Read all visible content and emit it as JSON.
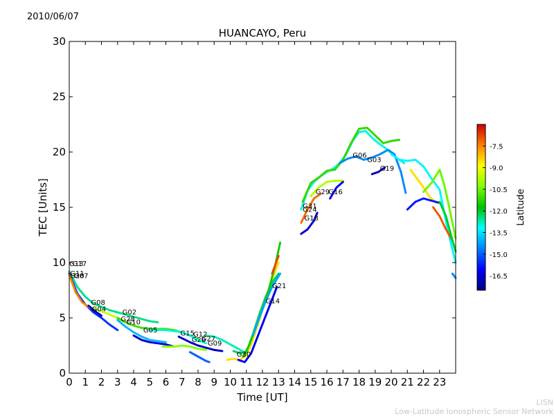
{
  "date": "2010/06/07",
  "credit": {
    "short": "LISN",
    "long": "Low-Latitude Ionospheric Sensor Network"
  },
  "chart_data": {
    "type": "scatter",
    "title": "HUANCAYO, Peru",
    "xlabel": "Time [UT]",
    "ylabel": "TEC [Units]",
    "xlim": [
      0,
      24
    ],
    "ylim": [
      0,
      30
    ],
    "xticks": [
      0,
      1,
      2,
      3,
      4,
      5,
      6,
      7,
      8,
      9,
      10,
      11,
      12,
      13,
      14,
      15,
      16,
      17,
      18,
      19,
      20,
      21,
      22,
      23
    ],
    "yticks": [
      0,
      5,
      10,
      15,
      20,
      25,
      30
    ],
    "colorbar": {
      "label": "Latitude",
      "range": [
        -17.5,
        -6.0
      ],
      "ticks": [
        -7.5,
        -9.0,
        -10.5,
        -12.0,
        -13.5,
        -15.0,
        -16.5
      ]
    },
    "satellite_labels": [
      {
        "name": "G13",
        "x": 0.0,
        "y": 9.7
      },
      {
        "name": "G17",
        "x": 0.2,
        "y": 9.7
      },
      {
        "name": "G11",
        "x": 0.05,
        "y": 8.8
      },
      {
        "name": "G20",
        "x": 0.05,
        "y": 8.6
      },
      {
        "name": "G07",
        "x": 0.3,
        "y": 8.6
      },
      {
        "name": "G08",
        "x": 1.35,
        "y": 6.2
      },
      {
        "name": "G04",
        "x": 1.4,
        "y": 5.6
      },
      {
        "name": "G02",
        "x": 3.3,
        "y": 5.3
      },
      {
        "name": "G28",
        "x": 3.2,
        "y": 4.7
      },
      {
        "name": "G10",
        "x": 3.55,
        "y": 4.4
      },
      {
        "name": "G05",
        "x": 4.6,
        "y": 3.7
      },
      {
        "name": "G15",
        "x": 6.9,
        "y": 3.4
      },
      {
        "name": "G12",
        "x": 7.7,
        "y": 3.3
      },
      {
        "name": "G26",
        "x": 7.6,
        "y": 2.8
      },
      {
        "name": "G27",
        "x": 8.2,
        "y": 2.9
      },
      {
        "name": "G09",
        "x": 8.6,
        "y": 2.5
      },
      {
        "name": "G30",
        "x": 10.4,
        "y": 1.5
      },
      {
        "name": "G21",
        "x": 12.6,
        "y": 7.7
      },
      {
        "name": "G14",
        "x": 12.2,
        "y": 6.3
      },
      {
        "name": "G31",
        "x": 14.5,
        "y": 14.9
      },
      {
        "name": "G24",
        "x": 14.5,
        "y": 14.6
      },
      {
        "name": "G18",
        "x": 14.6,
        "y": 13.8
      },
      {
        "name": "G29",
        "x": 15.3,
        "y": 16.2
      },
      {
        "name": "G16",
        "x": 16.1,
        "y": 16.2
      },
      {
        "name": "G06",
        "x": 17.6,
        "y": 19.5
      },
      {
        "name": "G03",
        "x": 18.5,
        "y": 19.1
      },
      {
        "name": "G19",
        "x": 19.3,
        "y": 18.3
      }
    ],
    "series": [
      {
        "name": "trace-a",
        "lat": -12.5,
        "x": [
          0,
          0.5,
          1,
          1.5,
          2,
          2.5,
          3,
          3.5,
          4,
          4.5,
          5,
          5.5
        ],
        "y": [
          9.2,
          7.8,
          6.9,
          6.3,
          6.0,
          5.7,
          5.5,
          5.3,
          5.1,
          4.9,
          4.7,
          4.6
        ]
      },
      {
        "name": "trace-b",
        "lat": -15.5,
        "x": [
          0,
          0.5,
          1,
          1.5,
          2,
          2.5,
          3
        ],
        "y": [
          9.0,
          7.2,
          6.2,
          5.5,
          5.0,
          4.4,
          3.9
        ]
      },
      {
        "name": "trace-c",
        "lat": -7.5,
        "x": [
          0,
          0.4,
          0.8,
          1.2,
          1.6
        ],
        "y": [
          8.9,
          7.3,
          6.4,
          6.0,
          5.7
        ]
      },
      {
        "name": "trace-d",
        "lat": -9.5,
        "x": [
          1.5,
          2,
          2.5,
          3,
          3.5,
          4
        ],
        "y": [
          5.9,
          5.6,
          5.3,
          5.0,
          4.6,
          4.3
        ]
      },
      {
        "name": "trace-e",
        "lat": -16.8,
        "x": [
          1.2,
          1.6,
          2
        ],
        "y": [
          6.1,
          5.6,
          5.2
        ]
      },
      {
        "name": "trace-f",
        "lat": -14.0,
        "x": [
          3,
          3.5,
          4,
          4.5,
          5,
          5.5,
          6
        ],
        "y": [
          4.8,
          4.2,
          3.7,
          3.3,
          3.0,
          2.9,
          2.8
        ]
      },
      {
        "name": "trace-g",
        "lat": -11.0,
        "x": [
          3,
          3.5,
          4,
          4.5,
          5,
          5.5,
          6,
          6.5,
          7,
          7.5,
          8
        ],
        "y": [
          5.0,
          4.6,
          4.3,
          4.1,
          4.0,
          4.0,
          4.0,
          3.9,
          3.7,
          3.4,
          3.1
        ]
      },
      {
        "name": "trace-h",
        "lat": -16.5,
        "x": [
          4,
          4.5,
          5,
          5.5,
          6,
          6.5
        ],
        "y": [
          3.4,
          3.0,
          2.8,
          2.7,
          2.6,
          2.4
        ]
      },
      {
        "name": "trace-i",
        "lat": -10.2,
        "x": [
          5.8,
          6.5,
          7,
          7.5,
          8,
          8.5
        ],
        "y": [
          2.4,
          2.4,
          2.5,
          2.4,
          2.2,
          2.1
        ]
      },
      {
        "name": "trace-j",
        "lat": -13.0,
        "x": [
          5,
          5.5,
          6,
          6.5,
          7,
          7.5,
          8,
          8.5
        ],
        "y": [
          3.9,
          3.9,
          3.9,
          3.8,
          3.7,
          3.4,
          3.0,
          2.7
        ]
      },
      {
        "name": "trace-k",
        "lat": -15.0,
        "x": [
          7.5,
          8,
          8.5,
          8.7
        ],
        "y": [
          1.9,
          1.5,
          1.1,
          1.0
        ]
      },
      {
        "name": "trace-l",
        "lat": -16.7,
        "x": [
          6.8,
          7.5,
          8,
          8.5,
          9,
          9.5
        ],
        "y": [
          3.3,
          2.8,
          2.5,
          2.3,
          2.1,
          2.0
        ]
      },
      {
        "name": "trace-m",
        "lat": -12.8,
        "x": [
          8.5,
          9,
          9.5,
          10,
          10.5,
          11
        ],
        "y": [
          3.4,
          3.3,
          3.0,
          2.6,
          2.2,
          1.8
        ]
      },
      {
        "name": "trace-n",
        "lat": -8.5,
        "x": [
          9.8,
          10.2,
          10.6,
          11,
          11.4,
          11.8,
          12.2,
          12.6,
          13
        ],
        "y": [
          1.2,
          1.3,
          1.2,
          1.6,
          3.0,
          4.8,
          6.8,
          8.5,
          10.0
        ]
      },
      {
        "name": "trace-o",
        "lat": -12.2,
        "x": [
          10.2,
          10.6,
          11,
          11.4,
          11.8,
          12.2,
          12.6,
          13
        ],
        "y": [
          2.0,
          1.8,
          1.9,
          3.5,
          5.3,
          6.9,
          8.2,
          9.0
        ]
      },
      {
        "name": "trace-p",
        "lat": -16.3,
        "x": [
          10.5,
          10.9,
          11.3,
          11.7,
          12.1,
          12.5,
          12.9
        ],
        "y": [
          1.2,
          1.0,
          1.8,
          3.3,
          4.8,
          6.3,
          7.8
        ]
      },
      {
        "name": "trace-q",
        "lat": -11.5,
        "x": [
          10.8,
          11.2,
          11.6,
          12,
          12.4,
          12.8,
          13.1
        ],
        "y": [
          1.5,
          2.6,
          4.2,
          5.8,
          7.6,
          9.8,
          11.8
        ]
      },
      {
        "name": "trace-r",
        "lat": -6.8,
        "x": [
          12.6,
          12.8,
          13
        ],
        "y": [
          9.0,
          9.8,
          10.6
        ]
      },
      {
        "name": "trace-s",
        "lat": -14.2,
        "x": [
          11.4,
          11.8,
          12.2,
          12.6,
          13.1
        ],
        "y": [
          3.4,
          5.0,
          6.5,
          7.8,
          9.0
        ]
      },
      {
        "name": "trace-t",
        "lat": -13.0,
        "x": [
          14.4,
          14.8,
          15.2,
          15.6,
          16,
          16.4,
          16.8,
          17.2,
          17.6,
          18,
          18.4,
          18.8,
          19.2,
          19.6,
          20,
          20.4,
          20.8
        ],
        "y": [
          14.8,
          16.5,
          17.3,
          17.8,
          18.2,
          18.5,
          19.0,
          19.8,
          21.0,
          21.8,
          21.9,
          21.3,
          20.8,
          20.4,
          19.9,
          19.4,
          19.0
        ]
      },
      {
        "name": "trace-u",
        "lat": -11.2,
        "x": [
          14.5,
          15,
          15.5,
          16,
          16.5,
          17,
          17.5,
          18,
          18.5,
          19,
          19.5,
          20,
          20.5
        ],
        "y": [
          15.5,
          17.2,
          17.7,
          18.3,
          18.4,
          19.3,
          20.8,
          22.1,
          22.2,
          21.5,
          20.8,
          21.0,
          21.1
        ]
      },
      {
        "name": "trace-v",
        "lat": -16.5,
        "x": [
          14.4,
          14.8,
          15.2,
          15.4
        ],
        "y": [
          12.6,
          13.0,
          13.8,
          14.5
        ]
      },
      {
        "name": "trace-w",
        "lat": -7.2,
        "x": [
          14.4,
          14.8,
          15.2,
          15.6
        ],
        "y": [
          13.6,
          14.8,
          15.8,
          16.2
        ]
      },
      {
        "name": "trace-x",
        "lat": -9.8,
        "x": [
          15,
          15.5,
          16,
          16.5,
          17
        ],
        "y": [
          16.0,
          16.8,
          17.3,
          17.4,
          17.4
        ]
      },
      {
        "name": "trace-y",
        "lat": -16.2,
        "x": [
          16.2,
          16.6,
          17
        ],
        "y": [
          15.8,
          16.8,
          17.3
        ]
      },
      {
        "name": "trace-z",
        "lat": -14.5,
        "x": [
          16.8,
          17.3,
          17.8,
          18.3,
          18.8,
          19.3,
          19.8,
          20.2,
          20.6,
          20.9
        ],
        "y": [
          19.0,
          19.4,
          19.6,
          19.3,
          19.5,
          19.8,
          20.2,
          19.8,
          18.2,
          16.3
        ]
      },
      {
        "name": "trace-aa",
        "lat": -16.8,
        "x": [
          18.8,
          19.2,
          19.6
        ],
        "y": [
          18.0,
          18.2,
          18.6
        ]
      },
      {
        "name": "trace-ab",
        "lat": -13.3,
        "x": [
          20,
          20.5,
          21,
          21.5,
          22,
          22.5,
          23,
          23.5,
          24
        ],
        "y": [
          19.8,
          19.3,
          19.2,
          19.3,
          18.7,
          17.6,
          16.6,
          13.0,
          10.0
        ]
      },
      {
        "name": "trace-ac",
        "lat": -8.5,
        "x": [
          21.2,
          21.6,
          22,
          22.4,
          22.8
        ],
        "y": [
          18.4,
          17.6,
          16.8,
          15.9,
          15.4
        ]
      },
      {
        "name": "trace-ad",
        "lat": -10.5,
        "x": [
          22,
          22.5,
          23,
          23.3,
          23.6,
          24
        ],
        "y": [
          16.4,
          17.2,
          18.4,
          17.0,
          15.0,
          12.2
        ]
      },
      {
        "name": "trace-ae",
        "lat": -15.8,
        "x": [
          21,
          21.5,
          22,
          22.5,
          23
        ],
        "y": [
          14.8,
          15.5,
          15.8,
          15.6,
          15.4
        ]
      },
      {
        "name": "trace-af",
        "lat": -7.0,
        "x": [
          22.6,
          23,
          23.4,
          23.8
        ],
        "y": [
          15.0,
          14.2,
          13.0,
          12.0
        ]
      },
      {
        "name": "trace-ag",
        "lat": -12.0,
        "x": [
          23,
          23.4,
          23.8,
          24
        ],
        "y": [
          15.5,
          14.2,
          12.0,
          11.0
        ]
      },
      {
        "name": "trace-ah",
        "lat": -14.5,
        "x": [
          23.8,
          24
        ],
        "y": [
          9.0,
          8.6
        ]
      }
    ]
  }
}
